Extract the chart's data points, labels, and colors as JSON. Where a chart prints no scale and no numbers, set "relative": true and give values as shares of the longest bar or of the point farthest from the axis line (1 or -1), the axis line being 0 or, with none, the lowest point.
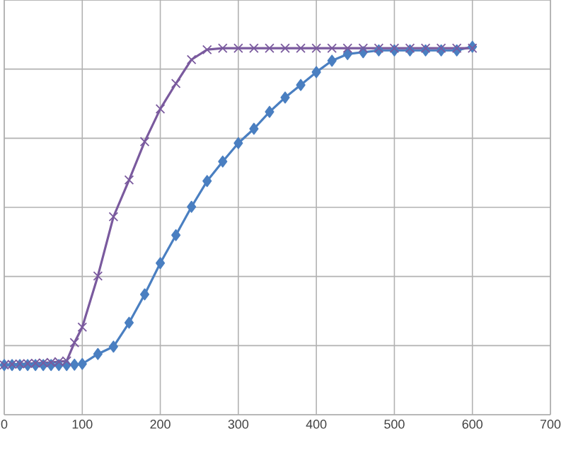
{
  "chart_data": {
    "type": "line",
    "relative": true,
    "grid": true,
    "tick_labels": "x",
    "xlim": [
      0,
      700
    ],
    "xticks": [
      0,
      100,
      200,
      300,
      400,
      500,
      600,
      700
    ],
    "series": [
      {
        "color": "#4a7fc1",
        "marker": "diamond",
        "x": [
          0,
          10,
          20,
          30,
          40,
          50,
          60,
          70,
          80,
          90,
          100,
          120,
          140,
          160,
          180,
          200,
          220,
          240,
          260,
          280,
          300,
          320,
          340,
          360,
          380,
          400,
          420,
          440,
          460,
          480,
          500,
          520,
          540,
          560,
          580,
          600
        ],
        "values": [
          0.135,
          0.135,
          0.135,
          0.135,
          0.135,
          0.135,
          0.135,
          0.135,
          0.135,
          0.136,
          0.138,
          0.165,
          0.185,
          0.25,
          0.327,
          0.412,
          0.488,
          0.565,
          0.635,
          0.688,
          0.738,
          0.777,
          0.823,
          0.862,
          0.896,
          0.931,
          0.962,
          0.98,
          0.985,
          0.99,
          0.99,
          0.99,
          0.99,
          0.99,
          0.99,
          1.0
        ]
      },
      {
        "color": "#7a5a9e",
        "marker": "cross",
        "x": [
          0,
          10,
          20,
          30,
          40,
          50,
          60,
          70,
          80,
          90,
          100,
          120,
          140,
          160,
          180,
          200,
          220,
          240,
          260,
          280,
          300,
          320,
          340,
          360,
          380,
          400,
          420,
          440,
          460,
          480,
          500,
          520,
          540,
          560,
          580,
          600
        ],
        "values": [
          0.135,
          0.137,
          0.138,
          0.139,
          0.14,
          0.141,
          0.142,
          0.144,
          0.146,
          0.196,
          0.238,
          0.377,
          0.538,
          0.638,
          0.742,
          0.831,
          0.9,
          0.965,
          0.992,
          0.996,
          0.996,
          0.996,
          0.996,
          0.996,
          0.996,
          0.996,
          0.996,
          0.996,
          0.996,
          0.996,
          0.996,
          0.996,
          0.996,
          0.996,
          0.996,
          0.996
        ]
      }
    ]
  }
}
